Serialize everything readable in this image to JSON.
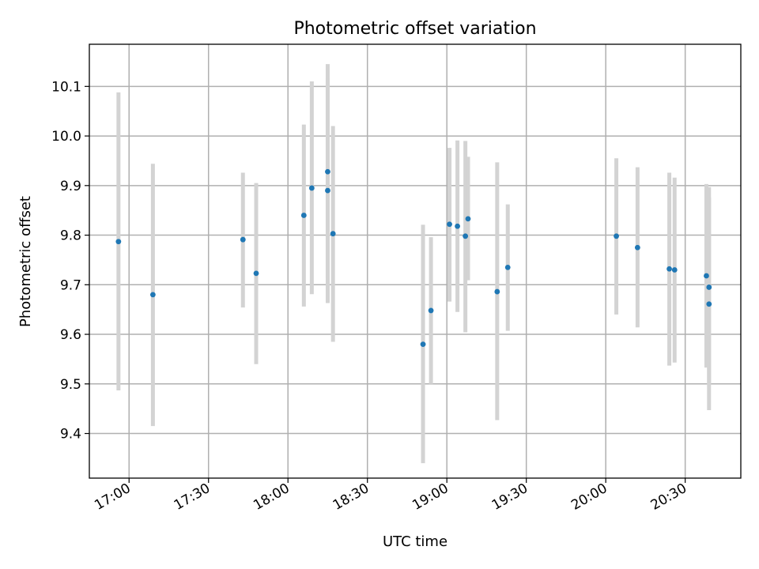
{
  "chart_data": {
    "type": "scatter",
    "title": "Photometric offset variation",
    "xlabel": "UTC time",
    "ylabel": "Photometric offset",
    "xlim": [
      "16:45",
      "20:51"
    ],
    "ylim": [
      9.31,
      10.185
    ],
    "x_ticks": [
      "17:00",
      "17:30",
      "18:00",
      "18:30",
      "19:00",
      "19:30",
      "20:00",
      "20:30"
    ],
    "y_ticks": [
      9.4,
      9.5,
      9.6,
      9.7,
      9.8,
      9.9,
      10.0,
      10.1
    ],
    "grid": true,
    "series": [
      {
        "marker_color": "#1f77b4",
        "errorbar_color": "#d3d3d3",
        "points": [
          {
            "x": "16:56",
            "y": 9.787,
            "ylow": 9.487,
            "yhigh": 10.088
          },
          {
            "x": "17:09",
            "y": 9.68,
            "ylow": 9.415,
            "yhigh": 9.944
          },
          {
            "x": "17:43",
            "y": 9.791,
            "ylow": 9.654,
            "yhigh": 9.926
          },
          {
            "x": "17:48",
            "y": 9.723,
            "ylow": 9.54,
            "yhigh": 9.905
          },
          {
            "x": "18:06",
            "y": 9.84,
            "ylow": 9.656,
            "yhigh": 10.023
          },
          {
            "x": "18:09",
            "y": 9.895,
            "ylow": 9.681,
            "yhigh": 10.11
          },
          {
            "x": "18:15",
            "y": 9.928,
            "ylow": 9.713,
            "yhigh": 10.145
          },
          {
            "x": "18:15",
            "y": 9.89,
            "ylow": 9.663,
            "yhigh": 10.117
          },
          {
            "x": "18:17",
            "y": 9.803,
            "ylow": 9.585,
            "yhigh": 10.02
          },
          {
            "x": "18:51",
            "y": 9.58,
            "ylow": 9.34,
            "yhigh": 9.821
          },
          {
            "x": "18:54",
            "y": 9.648,
            "ylow": 9.5,
            "yhigh": 9.796
          },
          {
            "x": "19:01",
            "y": 9.822,
            "ylow": 9.666,
            "yhigh": 9.976
          },
          {
            "x": "19:04",
            "y": 9.818,
            "ylow": 9.645,
            "yhigh": 9.991
          },
          {
            "x": "19:07",
            "y": 9.798,
            "ylow": 9.604,
            "yhigh": 9.99
          },
          {
            "x": "19:08",
            "y": 9.833,
            "ylow": 9.709,
            "yhigh": 9.958
          },
          {
            "x": "19:19",
            "y": 9.686,
            "ylow": 9.427,
            "yhigh": 9.947
          },
          {
            "x": "19:23",
            "y": 9.735,
            "ylow": 9.607,
            "yhigh": 9.862
          },
          {
            "x": "20:04",
            "y": 9.798,
            "ylow": 9.64,
            "yhigh": 9.955
          },
          {
            "x": "20:12",
            "y": 9.775,
            "ylow": 9.614,
            "yhigh": 9.937
          },
          {
            "x": "20:24",
            "y": 9.732,
            "ylow": 9.537,
            "yhigh": 9.926
          },
          {
            "x": "20:26",
            "y": 9.73,
            "ylow": 9.543,
            "yhigh": 9.916
          },
          {
            "x": "20:38",
            "y": 9.718,
            "ylow": 9.533,
            "yhigh": 9.903
          },
          {
            "x": "20:39",
            "y": 9.695,
            "ylow": 9.498,
            "yhigh": 9.897
          },
          {
            "x": "20:39",
            "y": 9.661,
            "ylow": 9.447,
            "yhigh": 9.876
          }
        ]
      }
    ]
  }
}
